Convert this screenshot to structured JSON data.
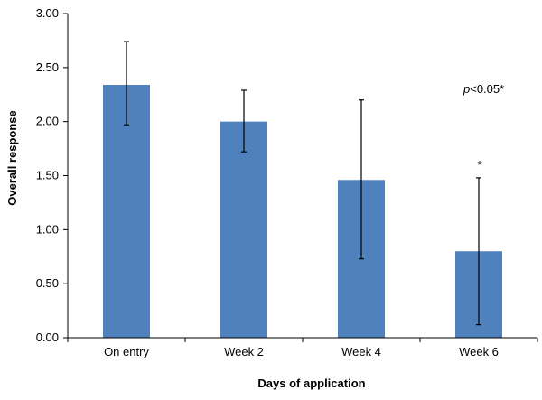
{
  "chart_data": {
    "type": "bar",
    "title": "",
    "xlabel": "Days of application",
    "ylabel": "Overall response",
    "categories": [
      "On entry",
      "Week 2",
      "Week 4",
      "Week 6"
    ],
    "values": [
      2.34,
      2.0,
      1.46,
      0.8
    ],
    "error_upper": [
      2.74,
      2.29,
      2.2,
      1.48
    ],
    "error_lower": [
      1.97,
      1.72,
      0.73,
      0.12
    ],
    "ylim": [
      0,
      3.0
    ],
    "ytick_labels": [
      "0.00",
      "0.50",
      "1.00",
      "1.50",
      "2.00",
      "2.50",
      "3.00"
    ],
    "bar_color": "#4f81bd",
    "grid": false,
    "significance_marker": "*",
    "significance_marker_category": "Week 6",
    "annotation": {
      "italic": "p",
      "rest": "<0.05*"
    }
  }
}
